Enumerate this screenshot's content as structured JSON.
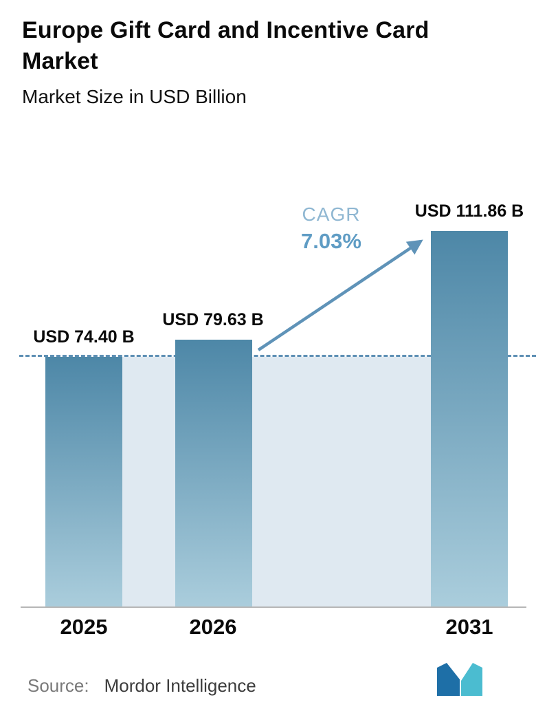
{
  "header": {
    "title": "Europe Gift Card and Incentive Card Market",
    "subtitle": "Market Size in USD Billion"
  },
  "chart_data": {
    "type": "bar",
    "title": "Europe Gift Card and Incentive Card Market",
    "subtitle": "Market Size in USD Billion",
    "categories": [
      "2025",
      "2026",
      "2031"
    ],
    "values": [
      74.4,
      79.63,
      111.86
    ],
    "value_labels": [
      "USD 74.40 B",
      "USD 79.63 B",
      "USD 111.86 B"
    ],
    "unit": "USD Billion",
    "ylim": [
      0,
      123
    ],
    "reference_line_value": 74.4,
    "annotation": {
      "label": "CAGR",
      "value": "7.03%"
    },
    "legend": "none",
    "grid": false,
    "colors": {
      "bar_gradient_top": "#4d87a7",
      "bar_gradient_bottom": "#aacddc",
      "reference_band": "#dfe9f1",
      "dashed_line": "#5d8fb4",
      "arrow": "#5f93b8",
      "cagr_label": "#8fb7d2",
      "cagr_value": "#5f9cc4",
      "text": "#0a0a0a"
    }
  },
  "footer": {
    "source_label": "Source:",
    "source_value": "Mordor Intelligence",
    "logo": {
      "name": "mordor-intelligence-logo",
      "color_left": "#1e6fa7",
      "color_right": "#4bbcd0"
    }
  }
}
